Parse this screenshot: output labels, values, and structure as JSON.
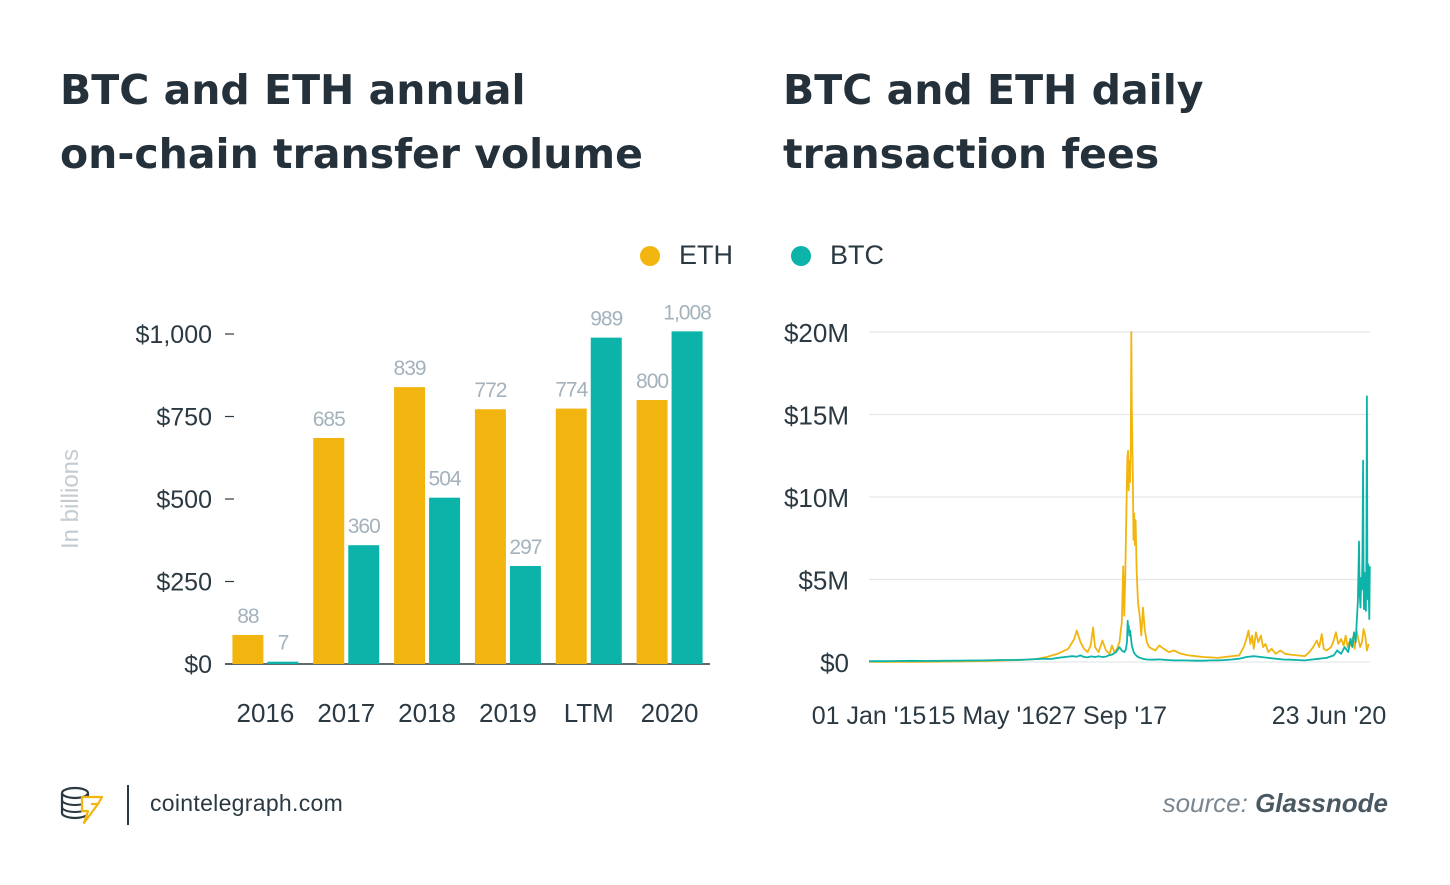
{
  "titles": {
    "left": [
      "BTC and ETH annual",
      "on-chain transfer volume"
    ],
    "right": [
      "BTC and ETH daily",
      "transaction fees"
    ]
  },
  "legend": [
    {
      "label": "ETH",
      "color": "#f2b50f"
    },
    {
      "label": "BTC",
      "color": "#0bb3a8"
    }
  ],
  "colors": {
    "eth": "#f2b50f",
    "btc": "#0bb3a8",
    "axis": "#2b3942",
    "grid": "#e4e7ea",
    "data_label": "#a4b2bc"
  },
  "chart_data": [
    {
      "type": "bar",
      "title": "BTC and ETH annual on-chain transfer volume",
      "ylabel": "In billions",
      "categories": [
        "2016",
        "2017",
        "2018",
        "2019",
        "LTM",
        "2020"
      ],
      "series": [
        {
          "name": "ETH",
          "values": [
            88,
            685,
            839,
            772,
            774,
            800
          ]
        },
        {
          "name": "BTC",
          "values": [
            7,
            360,
            504,
            297,
            989,
            1008
          ]
        }
      ],
      "data_labels": {
        "ETH": [
          "88",
          "685",
          "839",
          "772",
          "774",
          "800"
        ],
        "BTC": [
          "7",
          "360",
          "504",
          "297",
          "989",
          "1,008"
        ]
      },
      "yticks": [
        0,
        250,
        500,
        750,
        1000
      ],
      "ytick_labels": [
        "$0",
        "$250",
        "$500",
        "$750",
        "$1,000"
      ],
      "ylim": [
        0,
        1000
      ],
      "grid": false
    },
    {
      "type": "line",
      "title": "BTC and ETH daily transaction fees",
      "xtick_labels": [
        "01 Jan '15",
        "15 May '16",
        "27 Sep '17",
        "23 Jun '20"
      ],
      "xtick_dates": [
        "2015-01-01",
        "2016-05-15",
        "2017-09-27",
        "2020-06-23"
      ],
      "xlim": [
        "2015-01-01",
        "2020-09-30"
      ],
      "yticks": [
        0,
        5,
        10,
        15,
        20
      ],
      "ytick_labels": [
        "$0",
        "$5M",
        "$10M",
        "$15M",
        "$20M"
      ],
      "ylim": [
        0,
        20
      ],
      "yunit": "millions USD",
      "grid": true,
      "series": [
        {
          "name": "ETH",
          "points": [
            [
              "2015-01-01",
              0.01
            ],
            [
              "2015-08-07",
              0.01
            ],
            [
              "2015-10-01",
              0.02
            ],
            [
              "2016-01-01",
              0.03
            ],
            [
              "2016-03-01",
              0.05
            ],
            [
              "2016-06-01",
              0.07
            ],
            [
              "2016-08-01",
              0.1
            ],
            [
              "2016-10-01",
              0.12
            ],
            [
              "2016-12-01",
              0.18
            ],
            [
              "2017-01-15",
              0.3
            ],
            [
              "2017-03-01",
              0.5
            ],
            [
              "2017-04-15",
              0.8
            ],
            [
              "2017-05-10",
              1.4
            ],
            [
              "2017-05-20",
              1.9
            ],
            [
              "2017-06-05",
              1.2
            ],
            [
              "2017-06-20",
              0.8
            ],
            [
              "2017-07-05",
              0.6
            ],
            [
              "2017-07-18",
              1.0
            ],
            [
              "2017-07-28",
              2.1
            ],
            [
              "2017-08-05",
              0.9
            ],
            [
              "2017-08-20",
              0.6
            ],
            [
              "2017-09-05",
              1.3
            ],
            [
              "2017-09-20",
              0.7
            ],
            [
              "2017-10-05",
              0.5
            ],
            [
              "2017-10-15",
              1.0
            ],
            [
              "2017-10-25",
              0.6
            ],
            [
              "2017-11-05",
              0.8
            ],
            [
              "2017-11-15",
              1.2
            ],
            [
              "2017-11-25",
              2.4
            ],
            [
              "2017-12-01",
              5.8
            ],
            [
              "2017-12-05",
              2.8
            ],
            [
              "2017-12-10",
              5.3
            ],
            [
              "2017-12-14",
              8.8
            ],
            [
              "2017-12-18",
              12.3
            ],
            [
              "2017-12-21",
              12.8
            ],
            [
              "2017-12-24",
              10.4
            ],
            [
              "2017-12-27",
              12.2
            ],
            [
              "2017-12-30",
              10.9
            ],
            [
              "2018-01-02",
              13.2
            ],
            [
              "2018-01-04",
              20.0
            ],
            [
              "2018-01-06",
              15.6
            ],
            [
              "2018-01-08",
              13.3
            ],
            [
              "2018-01-10",
              12.0
            ],
            [
              "2018-01-13",
              7.4
            ],
            [
              "2018-01-16",
              9.0
            ],
            [
              "2018-01-19",
              7.1
            ],
            [
              "2018-01-22",
              8.6
            ],
            [
              "2018-01-26",
              5.6
            ],
            [
              "2018-02-01",
              3.6
            ],
            [
              "2018-02-08",
              2.8
            ],
            [
              "2018-02-15",
              1.6
            ],
            [
              "2018-02-22",
              3.3
            ],
            [
              "2018-03-01",
              2.0
            ],
            [
              "2018-03-10",
              1.2
            ],
            [
              "2018-03-20",
              0.9
            ],
            [
              "2018-04-01",
              0.8
            ],
            [
              "2018-04-15",
              0.7
            ],
            [
              "2018-05-01",
              1.0
            ],
            [
              "2018-05-20",
              0.8
            ],
            [
              "2018-06-10",
              0.6
            ],
            [
              "2018-07-01",
              0.7
            ],
            [
              "2018-08-01",
              0.5
            ],
            [
              "2018-09-01",
              0.4
            ],
            [
              "2018-10-01",
              0.35
            ],
            [
              "2018-11-01",
              0.3
            ],
            [
              "2018-12-01",
              0.28
            ],
            [
              "2019-01-01",
              0.25
            ],
            [
              "2019-02-01",
              0.3
            ],
            [
              "2019-03-01",
              0.35
            ],
            [
              "2019-04-01",
              0.4
            ],
            [
              "2019-04-20",
              0.9
            ],
            [
              "2019-05-01",
              1.4
            ],
            [
              "2019-05-10",
              1.9
            ],
            [
              "2019-05-18",
              1.1
            ],
            [
              "2019-05-25",
              1.6
            ],
            [
              "2019-06-01",
              0.8
            ],
            [
              "2019-06-10",
              1.8
            ],
            [
              "2019-06-20",
              1.2
            ],
            [
              "2019-07-01",
              1.6
            ],
            [
              "2019-07-10",
              0.9
            ],
            [
              "2019-07-20",
              1.1
            ],
            [
              "2019-08-01",
              0.6
            ],
            [
              "2019-08-15",
              0.8
            ],
            [
              "2019-09-01",
              0.5
            ],
            [
              "2019-09-20",
              0.7
            ],
            [
              "2019-10-10",
              0.5
            ],
            [
              "2019-11-01",
              0.45
            ],
            [
              "2019-12-01",
              0.4
            ],
            [
              "2020-01-01",
              0.35
            ],
            [
              "2020-01-20",
              0.6
            ],
            [
              "2020-02-05",
              0.9
            ],
            [
              "2020-02-20",
              1.3
            ],
            [
              "2020-03-01",
              0.9
            ],
            [
              "2020-03-12",
              1.7
            ],
            [
              "2020-03-20",
              0.8
            ],
            [
              "2020-04-01",
              0.7
            ],
            [
              "2020-04-20",
              0.9
            ],
            [
              "2020-05-01",
              1.3
            ],
            [
              "2020-05-10",
              1.8
            ],
            [
              "2020-05-20",
              1.1
            ],
            [
              "2020-06-01",
              1.4
            ],
            [
              "2020-06-12",
              1.0
            ],
            [
              "2020-06-20",
              1.6
            ],
            [
              "2020-06-28",
              0.9
            ],
            [
              "2020-07-05",
              1.2
            ],
            [
              "2020-07-12",
              1.0
            ],
            [
              "2020-07-20",
              1.5
            ],
            [
              "2020-07-28",
              0.8
            ],
            [
              "2020-08-05",
              1.9
            ],
            [
              "2020-08-12",
              1.4
            ],
            [
              "2020-08-20",
              0.9
            ],
            [
              "2020-08-27",
              1.2
            ],
            [
              "2020-09-03",
              2.0
            ],
            [
              "2020-09-10",
              1.6
            ],
            [
              "2020-09-17",
              0.7
            ],
            [
              "2020-09-24",
              1.1
            ]
          ]
        },
        {
          "name": "BTC",
          "points": [
            [
              "2015-01-01",
              0.05
            ],
            [
              "2015-03-01",
              0.05
            ],
            [
              "2015-05-01",
              0.06
            ],
            [
              "2015-07-01",
              0.07
            ],
            [
              "2015-09-01",
              0.06
            ],
            [
              "2015-11-01",
              0.07
            ],
            [
              "2016-01-01",
              0.08
            ],
            [
              "2016-03-01",
              0.09
            ],
            [
              "2016-05-01",
              0.1
            ],
            [
              "2016-07-01",
              0.12
            ],
            [
              "2016-09-01",
              0.12
            ],
            [
              "2016-11-01",
              0.15
            ],
            [
              "2017-01-01",
              0.2
            ],
            [
              "2017-02-01",
              0.18
            ],
            [
              "2017-03-01",
              0.25
            ],
            [
              "2017-04-01",
              0.3
            ],
            [
              "2017-05-01",
              0.35
            ],
            [
              "2017-05-20",
              0.32
            ],
            [
              "2017-06-05",
              0.4
            ],
            [
              "2017-06-20",
              0.3
            ],
            [
              "2017-07-05",
              0.28
            ],
            [
              "2017-07-20",
              0.34
            ],
            [
              "2017-08-05",
              0.3
            ],
            [
              "2017-08-20",
              0.35
            ],
            [
              "2017-09-05",
              0.3
            ],
            [
              "2017-09-20",
              0.33
            ],
            [
              "2017-10-01",
              0.4
            ],
            [
              "2017-10-15",
              0.45
            ],
            [
              "2017-11-01",
              0.6
            ],
            [
              "2017-11-15",
              0.9
            ],
            [
              "2017-11-25",
              0.7
            ],
            [
              "2017-12-05",
              0.6
            ],
            [
              "2017-12-12",
              0.75
            ],
            [
              "2017-12-17",
              1.2
            ],
            [
              "2017-12-20",
              2.5
            ],
            [
              "2017-12-22",
              1.9
            ],
            [
              "2017-12-24",
              2.2
            ],
            [
              "2017-12-27",
              1.6
            ],
            [
              "2017-12-30",
              1.9
            ],
            [
              "2018-01-03",
              1.4
            ],
            [
              "2018-01-06",
              1.0
            ],
            [
              "2018-01-10",
              0.8
            ],
            [
              "2018-01-14",
              0.6
            ],
            [
              "2018-01-18",
              0.5
            ],
            [
              "2018-01-24",
              0.4
            ],
            [
              "2018-02-01",
              0.3
            ],
            [
              "2018-02-20",
              0.2
            ],
            [
              "2018-03-10",
              0.15
            ],
            [
              "2018-04-01",
              0.14
            ],
            [
              "2018-05-01",
              0.16
            ],
            [
              "2018-06-01",
              0.12
            ],
            [
              "2018-07-01",
              0.1
            ],
            [
              "2018-08-01",
              0.1
            ],
            [
              "2018-09-01",
              0.09
            ],
            [
              "2018-10-01",
              0.08
            ],
            [
              "2018-11-01",
              0.08
            ],
            [
              "2018-12-01",
              0.1
            ],
            [
              "2019-01-01",
              0.1
            ],
            [
              "2019-02-01",
              0.12
            ],
            [
              "2019-03-01",
              0.15
            ],
            [
              "2019-04-01",
              0.2
            ],
            [
              "2019-05-01",
              0.3
            ],
            [
              "2019-06-01",
              0.35
            ],
            [
              "2019-07-01",
              0.3
            ],
            [
              "2019-08-01",
              0.25
            ],
            [
              "2019-09-01",
              0.2
            ],
            [
              "2019-10-01",
              0.15
            ],
            [
              "2019-11-01",
              0.14
            ],
            [
              "2019-12-01",
              0.12
            ],
            [
              "2020-01-01",
              0.1
            ],
            [
              "2020-02-01",
              0.15
            ],
            [
              "2020-03-01",
              0.2
            ],
            [
              "2020-04-01",
              0.25
            ],
            [
              "2020-05-01",
              0.4
            ],
            [
              "2020-05-15",
              0.7
            ],
            [
              "2020-06-01",
              0.5
            ],
            [
              "2020-06-15",
              0.9
            ],
            [
              "2020-07-01",
              0.6
            ],
            [
              "2020-07-10",
              1.4
            ],
            [
              "2020-07-18",
              0.9
            ],
            [
              "2020-07-25",
              1.8
            ],
            [
              "2020-08-01",
              1.2
            ],
            [
              "2020-08-05",
              2.3
            ],
            [
              "2020-08-10",
              3.6
            ],
            [
              "2020-08-13",
              5.6
            ],
            [
              "2020-08-15",
              7.3
            ],
            [
              "2020-08-18",
              4.1
            ],
            [
              "2020-08-21",
              3.3
            ],
            [
              "2020-08-24",
              5.1
            ],
            [
              "2020-08-27",
              4.4
            ],
            [
              "2020-08-29",
              6.2
            ],
            [
              "2020-09-01",
              12.2
            ],
            [
              "2020-09-03",
              4.6
            ],
            [
              "2020-09-05",
              3.2
            ],
            [
              "2020-09-07",
              5.4
            ],
            [
              "2020-09-09",
              4.2
            ],
            [
              "2020-09-11",
              5.1
            ],
            [
              "2020-09-13",
              3.1
            ],
            [
              "2020-09-15",
              6.3
            ],
            [
              "2020-09-17",
              16.1
            ],
            [
              "2020-09-19",
              4.9
            ],
            [
              "2020-09-21",
              3.8
            ],
            [
              "2020-09-23",
              5.9
            ],
            [
              "2020-09-25",
              4.1
            ],
            [
              "2020-09-27",
              2.6
            ],
            [
              "2020-09-29",
              5.8
            ]
          ]
        }
      ]
    }
  ],
  "footer": {
    "site": "cointelegraph.com",
    "source_prefix": "source:",
    "source_name": "Glassnode"
  }
}
